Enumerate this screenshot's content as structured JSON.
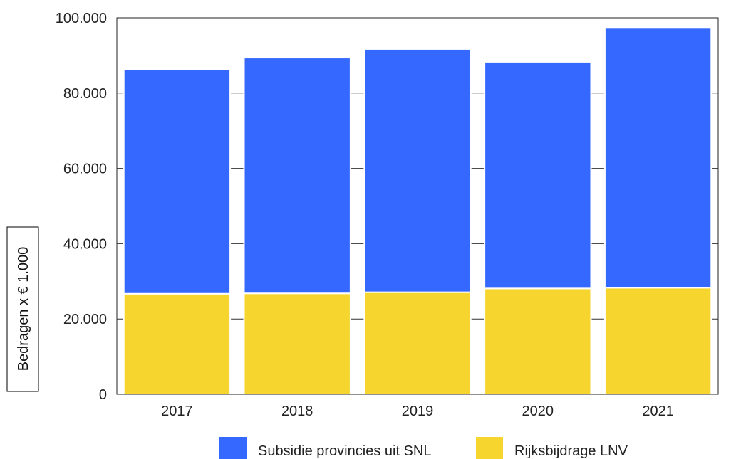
{
  "chart_data": {
    "type": "bar",
    "stacked": true,
    "categories": [
      "2017",
      "2018",
      "2019",
      "2020",
      "2021"
    ],
    "series": [
      {
        "name": "Rijksbijdrage LNV",
        "color": "#f5d52e",
        "values": [
          26700,
          26800,
          27100,
          28100,
          28300
        ]
      },
      {
        "name": "Subsidie provincies uit SNL",
        "color": "#3568ff",
        "values": [
          59600,
          62600,
          64600,
          60200,
          69000
        ]
      }
    ],
    "title": "",
    "xlabel": "",
    "ylabel": "Bedragen x € 1.000",
    "ylim": [
      0,
      100000
    ],
    "yticks": [
      "0",
      "20.000",
      "40.000",
      "60.000",
      "80.000",
      "100.000"
    ],
    "grid": true,
    "legend_position": "bottom"
  }
}
